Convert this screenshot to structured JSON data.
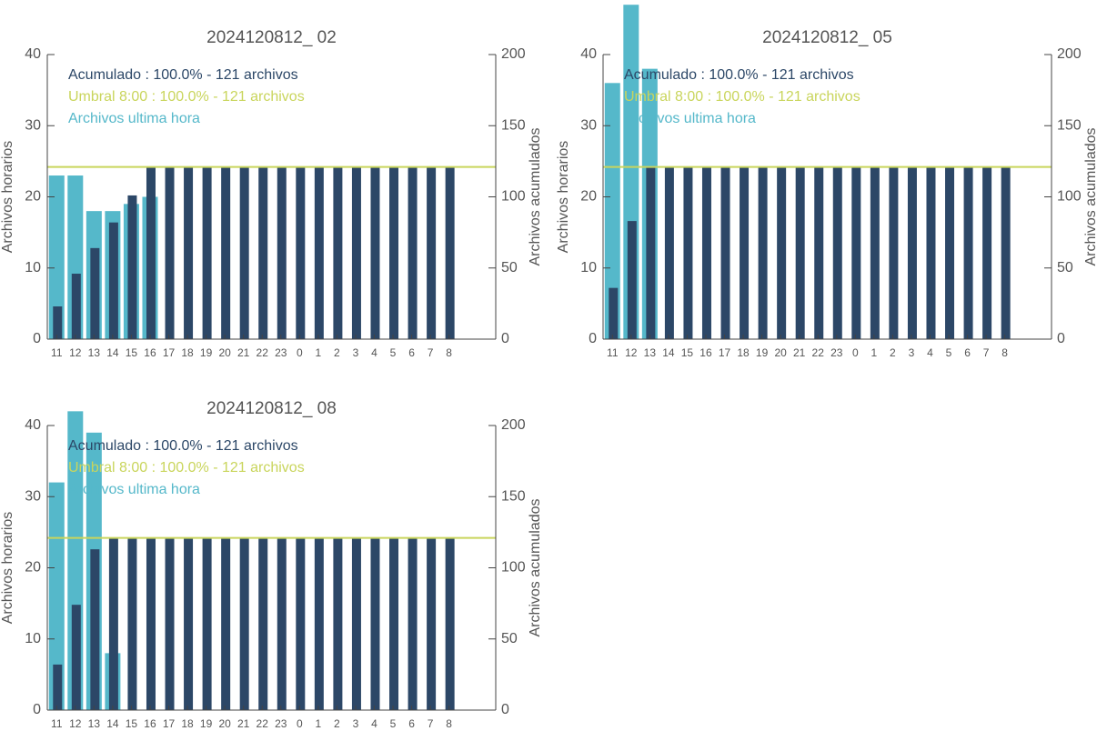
{
  "chart_data": [
    {
      "type": "bar",
      "title": "2024120812_ 02",
      "ylabel": "Archivos horarios",
      "y2label": "Archivos acumulados",
      "categories": [
        "11",
        "12",
        "13",
        "14",
        "15",
        "16",
        "17",
        "18",
        "19",
        "20",
        "21",
        "22",
        "23",
        "0",
        "1",
        "2",
        "3",
        "4",
        "5",
        "6",
        "7",
        "8"
      ],
      "series": [
        {
          "name": "Acumulado : 100.0% - 121 archivos",
          "color": "#2c4767",
          "axis": "y2",
          "values": [
            23,
            46,
            64,
            82,
            101,
            121,
            121,
            121,
            121,
            121,
            121,
            121,
            121,
            121,
            121,
            121,
            121,
            121,
            121,
            121,
            121,
            121
          ]
        },
        {
          "name": "Archivos ultima hora",
          "color": "#55b8ca",
          "values": [
            23,
            23,
            18,
            18,
            19,
            20,
            0,
            0,
            0,
            0,
            0,
            0,
            0,
            0,
            0,
            0,
            0,
            0,
            0,
            0,
            0,
            0
          ]
        }
      ],
      "threshold": {
        "label": "Umbral 8:00 : 100.0% - 121 archivos",
        "value": 121,
        "color": "#c9d55c",
        "axis": "y2"
      },
      "ylim": [
        0,
        40
      ],
      "yticks": [
        0,
        10,
        20,
        30,
        40
      ],
      "y2lim": [
        0,
        200
      ],
      "y2ticks": [
        0,
        50,
        100,
        150,
        200
      ]
    },
    {
      "type": "bar",
      "title": "2024120812_ 05",
      "ylabel": "Archivos horarios",
      "y2label": "Archivos acumulados",
      "categories": [
        "11",
        "12",
        "13",
        "14",
        "15",
        "16",
        "17",
        "18",
        "19",
        "20",
        "21",
        "22",
        "23",
        "0",
        "1",
        "2",
        "3",
        "4",
        "5",
        "6",
        "7",
        "8"
      ],
      "series": [
        {
          "name": "Acumulado : 100.0% - 121 archivos",
          "color": "#2c4767",
          "axis": "y2",
          "values": [
            36,
            83,
            121,
            121,
            121,
            121,
            121,
            121,
            121,
            121,
            121,
            121,
            121,
            121,
            121,
            121,
            121,
            121,
            121,
            121,
            121,
            121
          ]
        },
        {
          "name": "Archivos ultima hora",
          "color": "#55b8ca",
          "values": [
            36,
            47,
            38,
            0,
            0,
            0,
            0,
            0,
            0,
            0,
            0,
            0,
            0,
            0,
            0,
            0,
            0,
            0,
            0,
            0,
            0,
            0
          ]
        }
      ],
      "threshold": {
        "label": "Umbral 8:00 : 100.0% - 121 archivos",
        "value": 121,
        "color": "#c9d55c",
        "axis": "y2"
      },
      "ylim": [
        0,
        40
      ],
      "yticks": [
        0,
        10,
        20,
        30,
        40
      ],
      "y2lim": [
        0,
        200
      ],
      "y2ticks": [
        0,
        50,
        100,
        150,
        200
      ]
    },
    {
      "type": "bar",
      "title": "2024120812_ 08",
      "ylabel": "Archivos horarios",
      "y2label": "Archivos acumulados",
      "categories": [
        "11",
        "12",
        "13",
        "14",
        "15",
        "16",
        "17",
        "18",
        "19",
        "20",
        "21",
        "22",
        "23",
        "0",
        "1",
        "2",
        "3",
        "4",
        "5",
        "6",
        "7",
        "8"
      ],
      "series": [
        {
          "name": "Acumulado : 100.0% - 121 archivos",
          "color": "#2c4767",
          "axis": "y2",
          "values": [
            32,
            74,
            113,
            121,
            121,
            121,
            121,
            121,
            121,
            121,
            121,
            121,
            121,
            121,
            121,
            121,
            121,
            121,
            121,
            121,
            121,
            121
          ]
        },
        {
          "name": "Archivos ultima hora",
          "color": "#55b8ca",
          "values": [
            32,
            42,
            39,
            8,
            0,
            0,
            0,
            0,
            0,
            0,
            0,
            0,
            0,
            0,
            0,
            0,
            0,
            0,
            0,
            0,
            0,
            0
          ]
        }
      ],
      "threshold": {
        "label": "Umbral 8:00 : 100.0% - 121 archivos",
        "value": 121,
        "color": "#c9d55c",
        "axis": "y2"
      },
      "ylim": [
        0,
        40
      ],
      "yticks": [
        0,
        10,
        20,
        30,
        40
      ],
      "y2lim": [
        0,
        200
      ],
      "y2ticks": [
        0,
        50,
        100,
        150,
        200
      ]
    }
  ]
}
